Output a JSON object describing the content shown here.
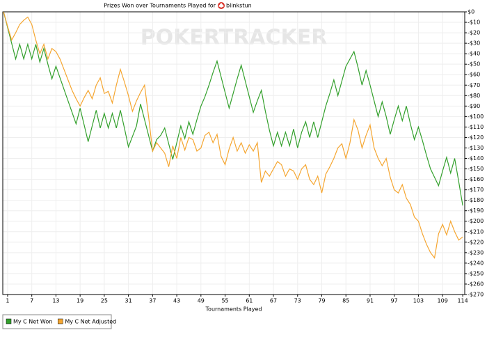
{
  "chart_data": {
    "type": "line",
    "title": "Prizes Won over Tournaments Played for",
    "player": "blinkstun",
    "watermark": "POKERTRACKER",
    "x_label": "Tournaments Played",
    "x": [
      0,
      1,
      2,
      3,
      4,
      5,
      6,
      7,
      8,
      9,
      10,
      11,
      12,
      13,
      14,
      15,
      16,
      17,
      18,
      19,
      20,
      21,
      22,
      23,
      24,
      25,
      26,
      27,
      28,
      29,
      30,
      31,
      32,
      33,
      34,
      35,
      36,
      37,
      38,
      39,
      40,
      41,
      42,
      43,
      44,
      45,
      46,
      47,
      48,
      49,
      50,
      51,
      52,
      53,
      54,
      55,
      56,
      57,
      58,
      59,
      60,
      61,
      62,
      63,
      64,
      65,
      66,
      67,
      68,
      69,
      70,
      71,
      72,
      73,
      74,
      75,
      76,
      77,
      78,
      79,
      80,
      81,
      82,
      83,
      84,
      85,
      86,
      87,
      88,
      89,
      90,
      91,
      92,
      93,
      94,
      95,
      96,
      97,
      98,
      99,
      100,
      101,
      102,
      103,
      104,
      105,
      106,
      107,
      108,
      109,
      110,
      111,
      112,
      113,
      114
    ],
    "series": [
      {
        "name": "My C Net Won",
        "color": "#33a02c",
        "values": [
          0,
          -15,
          -30,
          -45,
          -31,
          -45,
          -31,
          -45,
          -31,
          -48,
          -35,
          -50,
          -64,
          -52,
          -63,
          -74,
          -85,
          -96,
          -107,
          -92,
          -108,
          -124,
          -109,
          -94,
          -111,
          -97,
          -111,
          -97,
          -111,
          -94,
          -111,
          -129,
          -119,
          -109,
          -88,
          -103,
          -118,
          -133,
          -122,
          -118,
          -111,
          -126,
          -141,
          -125,
          -109,
          -121,
          -105,
          -117,
          -103,
          -90,
          -81,
          -70,
          -58,
          -47,
          -62,
          -77,
          -92,
          -78,
          -64,
          -51,
          -66,
          -81,
          -96,
          -85,
          -75,
          -95,
          -113,
          -128,
          -115,
          -128,
          -115,
          -128,
          -112,
          -130,
          -115,
          -105,
          -120,
          -105,
          -120,
          -105,
          -90,
          -78,
          -65,
          -80,
          -66,
          -52,
          -45,
          -38,
          -53,
          -70,
          -56,
          -70,
          -85,
          -100,
          -86,
          -100,
          -117,
          -103,
          -90,
          -104,
          -90,
          -107,
          -122,
          -110,
          -123,
          -137,
          -150,
          -158,
          -166,
          -152,
          -139,
          -154,
          -140,
          -162,
          -185
        ]
      },
      {
        "name": "My C Net Adjusted",
        "color": "#f5a631",
        "values": [
          0,
          -14,
          -27,
          -20,
          -12,
          -8,
          -5,
          -12,
          -27,
          -40,
          -31,
          -45,
          -35,
          -38,
          -45,
          -55,
          -65,
          -75,
          -83,
          -90,
          -82,
          -75,
          -83,
          -70,
          -63,
          -78,
          -76,
          -87,
          -70,
          -55,
          -67,
          -80,
          -95,
          -85,
          -77,
          -70,
          -100,
          -133,
          -125,
          -130,
          -135,
          -148,
          -128,
          -140,
          -120,
          -132,
          -120,
          -122,
          -133,
          -130,
          -118,
          -115,
          -125,
          -117,
          -138,
          -146,
          -131,
          -120,
          -133,
          -125,
          -135,
          -127,
          -133,
          -125,
          -163,
          -152,
          -157,
          -150,
          -143,
          -146,
          -157,
          -150,
          -152,
          -160,
          -150,
          -146,
          -160,
          -165,
          -157,
          -173,
          -155,
          -148,
          -140,
          -130,
          -126,
          -140,
          -125,
          -103,
          -113,
          -130,
          -118,
          -108,
          -130,
          -140,
          -147,
          -140,
          -158,
          -170,
          -173,
          -165,
          -178,
          -184,
          -196,
          -200,
          -212,
          -222,
          -230,
          -235,
          -212,
          -203,
          -213,
          -200,
          -210,
          -218,
          -215
        ]
      }
    ],
    "xlim": [
      -0.2,
      114.5
    ],
    "xticks": [
      1,
      7,
      13,
      19,
      25,
      31,
      37,
      43,
      49,
      55,
      61,
      67,
      73,
      79,
      85,
      91,
      97,
      103,
      109,
      114
    ],
    "ylim": [
      -270,
      0
    ],
    "yticks": [
      {
        "value": 0,
        "label": "$0"
      },
      {
        "value": -10,
        "label": "-$10"
      },
      {
        "value": -20,
        "label": "-$20"
      },
      {
        "value": -30,
        "label": "-$30"
      },
      {
        "value": -40,
        "label": "-$40"
      },
      {
        "value": -50,
        "label": "-$50"
      },
      {
        "value": -60,
        "label": "-$60"
      },
      {
        "value": -70,
        "label": "-$70"
      },
      {
        "value": -80,
        "label": "-$80"
      },
      {
        "value": -90,
        "label": "-$90"
      },
      {
        "value": -100,
        "label": "-$100"
      },
      {
        "value": -110,
        "label": "-$110"
      },
      {
        "value": -120,
        "label": "-$120"
      },
      {
        "value": -130,
        "label": "-$130"
      },
      {
        "value": -140,
        "label": "-$140"
      },
      {
        "value": -150,
        "label": "-$150"
      },
      {
        "value": -160,
        "label": "-$160"
      },
      {
        "value": -170,
        "label": "-$170"
      },
      {
        "value": -180,
        "label": "-$180"
      },
      {
        "value": -190,
        "label": "-$190"
      },
      {
        "value": -200,
        "label": "-$200"
      },
      {
        "value": -210,
        "label": "-$210"
      },
      {
        "value": -220,
        "label": "-$220"
      },
      {
        "value": -230,
        "label": "-$230"
      },
      {
        "value": -240,
        "label": "-$240"
      },
      {
        "value": -250,
        "label": "-$250"
      },
      {
        "value": -260,
        "label": "-$260"
      },
      {
        "value": -270,
        "label": "-$270"
      }
    ],
    "grid": true,
    "legend": "bottom-left"
  }
}
